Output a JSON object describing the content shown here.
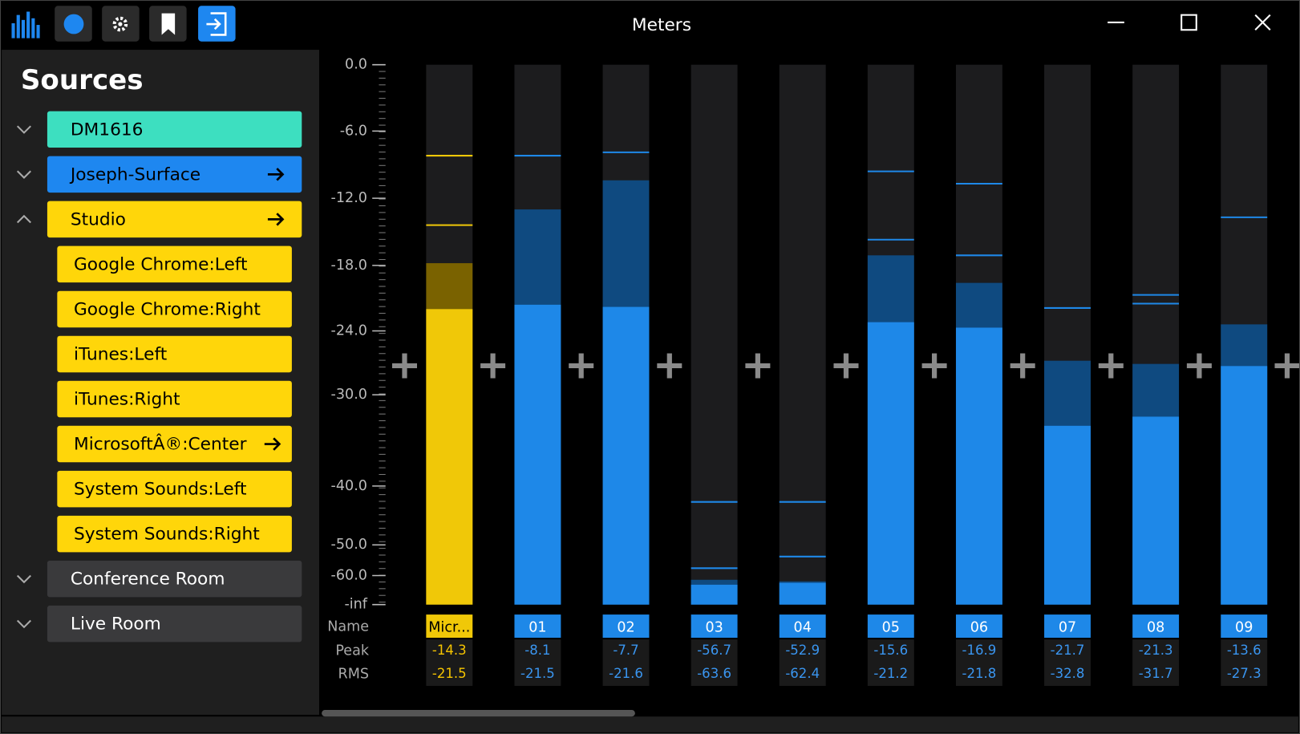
{
  "window": {
    "title": "Meters"
  },
  "sidebar": {
    "title": "Sources",
    "sources": [
      {
        "label": "DM1616",
        "color": "#3ddfc0",
        "text_color": "#000000",
        "expanded": false,
        "arrow": false
      },
      {
        "label": "Joseph-Surface",
        "color": "#1e87f0",
        "text_color": "#000000",
        "expanded": false,
        "arrow": true
      },
      {
        "label": "Studio",
        "color": "#ffd60a",
        "text_color": "#000000",
        "expanded": true,
        "arrow": true,
        "children": [
          {
            "label": "Google Chrome:Left",
            "arrow": false
          },
          {
            "label": "Google Chrome:Right",
            "arrow": false
          },
          {
            "label": "iTunes:Left",
            "arrow": false
          },
          {
            "label": "iTunes:Right",
            "arrow": false
          },
          {
            "label": "MicrosoftÂ®:Center",
            "arrow": true
          },
          {
            "label": "System Sounds:Left",
            "arrow": false
          },
          {
            "label": "System Sounds:Right",
            "arrow": false
          }
        ]
      },
      {
        "label": "Conference Room",
        "color": "#3a3a3c",
        "text_color": "#ffffff",
        "expanded": false,
        "arrow": false
      },
      {
        "label": "Live Room",
        "color": "#3a3a3c",
        "text_color": "#ffffff",
        "expanded": false,
        "arrow": false
      }
    ]
  },
  "meters": {
    "scale_ticks": [
      {
        "value": 0,
        "label": "0.0"
      },
      {
        "value": -6,
        "label": "-6.0"
      },
      {
        "value": -12,
        "label": "-12.0"
      },
      {
        "value": -18,
        "label": "-18.0"
      },
      {
        "value": -24,
        "label": "-24.0"
      },
      {
        "value": -30,
        "label": "-30.0"
      },
      {
        "value": -40,
        "label": "-40.0"
      },
      {
        "value": -50,
        "label": "-50.0"
      },
      {
        "value": -60,
        "label": "-60.0"
      },
      {
        "value": null,
        "label": "-inf"
      }
    ],
    "row_labels": {
      "name": "Name",
      "peak": "Peak",
      "rms": "RMS"
    },
    "channels": [
      {
        "name": "Micr...",
        "peak": -14.3,
        "rms": -21.5,
        "level": -22.0,
        "hold": -17.8,
        "peak_lines": [
          -8.2,
          -14.4
        ],
        "color": "#f0c808",
        "dark_color": "#7a6200",
        "text_color": "#f5c400"
      },
      {
        "name": "01",
        "peak": -8.1,
        "rms": -21.5,
        "level": -21.6,
        "hold": -13.0,
        "peak_lines": [
          -8.2
        ],
        "color": "#1e88e8",
        "dark_color": "#0f4a80",
        "text_color": "#3a95ef"
      },
      {
        "name": "02",
        "peak": -7.7,
        "rms": -21.6,
        "level": -21.8,
        "hold": -10.4,
        "peak_lines": [
          -7.9
        ],
        "color": "#1e88e8",
        "dark_color": "#0f4a80",
        "text_color": "#3a95ef"
      },
      {
        "name": "03",
        "peak": -56.7,
        "rms": -63.6,
        "level": -66.3,
        "hold": -62.9,
        "peak_lines": [
          -42.7,
          -57.6
        ],
        "color": "#1e88e8",
        "dark_color": "#0f4a80",
        "text_color": "#3a95ef"
      },
      {
        "name": "04",
        "peak": -52.9,
        "rms": -62.4,
        "level": -65.0,
        "hold": -64.0,
        "peak_lines": [
          -42.7,
          -53.8
        ],
        "color": "#1e88e8",
        "dark_color": "#0f4a80",
        "text_color": "#3a95ef"
      },
      {
        "name": "05",
        "peak": -15.6,
        "rms": -21.2,
        "level": -23.2,
        "hold": -17.1,
        "peak_lines": [
          -9.6,
          -15.7
        ],
        "color": "#1e88e8",
        "dark_color": "#0f4a80",
        "text_color": "#3a95ef"
      },
      {
        "name": "06",
        "peak": -16.9,
        "rms": -21.8,
        "level": -23.7,
        "hold": -19.6,
        "peak_lines": [
          -10.7,
          -17.1
        ],
        "color": "#1e88e8",
        "dark_color": "#0f4a80",
        "text_color": "#3a95ef"
      },
      {
        "name": "07",
        "peak": -21.7,
        "rms": -32.8,
        "level": -33.4,
        "hold": -26.8,
        "peak_lines": [
          -21.9
        ],
        "color": "#1e88e8",
        "dark_color": "#0f4a80",
        "text_color": "#3a95ef"
      },
      {
        "name": "08",
        "peak": -21.3,
        "rms": -31.7,
        "level": -32.4,
        "hold": -27.1,
        "peak_lines": [
          -20.7,
          -21.5
        ],
        "color": "#1e88e8",
        "dark_color": "#0f4a80",
        "text_color": "#3a95ef"
      },
      {
        "name": "09",
        "peak": -13.6,
        "rms": -27.3,
        "level": -27.3,
        "hold": -23.4,
        "peak_lines": [
          -13.7
        ],
        "color": "#1e88e8",
        "dark_color": "#0f4a80",
        "text_color": "#3a95ef"
      }
    ]
  }
}
